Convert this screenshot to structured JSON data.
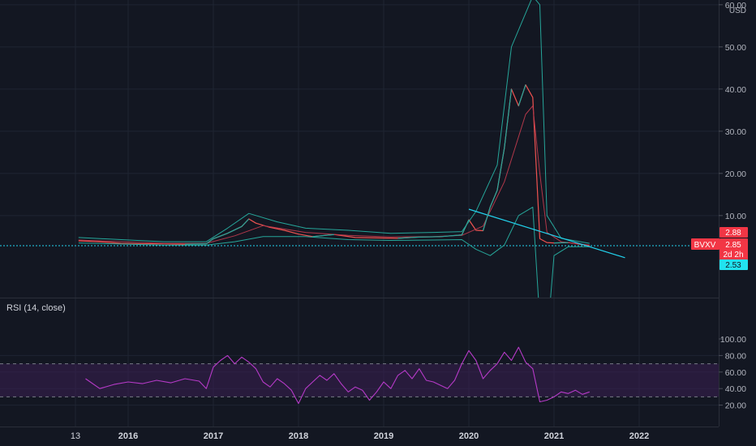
{
  "price_pane": {
    "currency": "USD",
    "y_ticks": [
      {
        "value": 60,
        "label": "60.00"
      },
      {
        "value": 50,
        "label": "50.00"
      },
      {
        "value": 40,
        "label": "40.00"
      },
      {
        "value": 30,
        "label": "30.00"
      },
      {
        "value": 20,
        "label": "20.00"
      },
      {
        "value": 10,
        "label": "10.00"
      }
    ],
    "ticker_badge": {
      "symbol": "BVXV",
      "price": "2.85",
      "countdown": "2d 2h",
      "color": "#f23645"
    },
    "high_badge": {
      "label": "2.88",
      "color": "#f23645"
    },
    "low_badge": {
      "label": "2.53",
      "color": "#22e3f0"
    }
  },
  "rsi_pane": {
    "title": "RSI (14, close)",
    "y_ticks": [
      {
        "value": 100,
        "label": "100.00"
      },
      {
        "value": 80,
        "label": "80.00"
      },
      {
        "value": 60,
        "label": "60.00"
      },
      {
        "value": 40,
        "label": "40.00"
      },
      {
        "value": 20,
        "label": "20.00"
      }
    ]
  },
  "x_axis": {
    "ticks": [
      "13",
      "2016",
      "2017",
      "2018",
      "2019",
      "2020",
      "2021",
      "2022"
    ]
  },
  "colors": {
    "background": "#131722",
    "grid": "#1f2433",
    "bull": "#26a69a",
    "bear": "#ef5350",
    "band": "#26a69a",
    "basis": "#b2384a",
    "trendline": "#22d3ee",
    "rsi_line": "#b63ac8",
    "rsi_band": "#3a1f52",
    "axis_text": "#b2b5be"
  },
  "chart_data": [
    {
      "type": "line",
      "pane": "price",
      "y_unit": "USD",
      "ylim": [
        0,
        60
      ],
      "x_range": [
        "2015-06",
        "2022-08"
      ],
      "grid": true,
      "series": [
        {
          "role": "price",
          "points": [
            [
              "2015-06",
              4.0
            ],
            [
              "2015-09",
              3.8
            ],
            [
              "2015-12",
              3.4
            ],
            [
              "2016-03",
              3.3
            ],
            [
              "2016-06",
              3.3
            ],
            [
              "2016-09",
              3.2
            ],
            [
              "2016-12",
              3.3
            ],
            [
              "2017-01",
              4.5
            ],
            [
              "2017-03",
              5.8
            ],
            [
              "2017-05",
              7.4
            ],
            [
              "2017-06",
              9.2
            ],
            [
              "2017-07",
              8.2
            ],
            [
              "2017-09",
              7.2
            ],
            [
              "2017-11",
              6.5
            ],
            [
              "2018-01",
              5.6
            ],
            [
              "2018-03",
              5.0
            ],
            [
              "2018-06",
              5.5
            ],
            [
              "2018-09",
              4.8
            ],
            [
              "2018-12",
              4.7
            ],
            [
              "2019-03",
              4.6
            ],
            [
              "2019-06",
              4.9
            ],
            [
              "2019-09",
              5.0
            ],
            [
              "2019-12",
              5.4
            ],
            [
              "2020-01",
              9.0
            ],
            [
              "2020-02",
              6.5
            ],
            [
              "2020-03",
              6.4
            ],
            [
              "2020-04",
              12.0
            ],
            [
              "2020-05",
              16.0
            ],
            [
              "2020-06",
              26.0
            ],
            [
              "2020-07",
              40.0
            ],
            [
              "2020-08",
              36.0
            ],
            [
              "2020-09",
              41.0
            ],
            [
              "2020-10",
              38.0
            ],
            [
              "2020-11",
              4.5
            ],
            [
              "2020-12",
              3.6
            ],
            [
              "2021-01",
              3.5
            ],
            [
              "2021-03",
              3.6
            ],
            [
              "2021-05",
              3.1
            ],
            [
              "2021-06",
              2.85
            ]
          ]
        },
        {
          "role": "upper_band",
          "points": [
            [
              "2015-06",
              4.8
            ],
            [
              "2016-06",
              3.8
            ],
            [
              "2016-12",
              3.8
            ],
            [
              "2017-03",
              7.0
            ],
            [
              "2017-06",
              10.5
            ],
            [
              "2017-10",
              8.5
            ],
            [
              "2018-02",
              7.0
            ],
            [
              "2018-08",
              6.5
            ],
            [
              "2019-02",
              5.8
            ],
            [
              "2019-08",
              6.0
            ],
            [
              "2019-12",
              6.2
            ],
            [
              "2020-02",
              11.0
            ],
            [
              "2020-05",
              22.0
            ],
            [
              "2020-07",
              50.0
            ],
            [
              "2020-10",
              62.0
            ],
            [
              "2020-11",
              60.0
            ],
            [
              "2020-12",
              10.0
            ],
            [
              "2021-02",
              4.6
            ],
            [
              "2021-06",
              3.4
            ]
          ]
        },
        {
          "role": "basis",
          "points": [
            [
              "2015-06",
              4.2
            ],
            [
              "2016-06",
              3.4
            ],
            [
              "2016-12",
              3.4
            ],
            [
              "2017-04",
              5.2
            ],
            [
              "2017-08",
              7.6
            ],
            [
              "2018-02",
              6.0
            ],
            [
              "2018-08",
              5.3
            ],
            [
              "2019-02",
              4.9
            ],
            [
              "2019-08",
              5.0
            ],
            [
              "2019-12",
              5.3
            ],
            [
              "2020-03",
              7.5
            ],
            [
              "2020-06",
              18.0
            ],
            [
              "2020-09",
              34.0
            ],
            [
              "2020-10",
              36.0
            ],
            [
              "2020-11",
              20.0
            ],
            [
              "2020-12",
              6.0
            ],
            [
              "2021-02",
              3.8
            ],
            [
              "2021-06",
              3.0
            ]
          ]
        },
        {
          "role": "lower_band",
          "points": [
            [
              "2015-06",
              3.5
            ],
            [
              "2016-06",
              3.0
            ],
            [
              "2016-12",
              3.0
            ],
            [
              "2017-04",
              3.8
            ],
            [
              "2017-08",
              5.0
            ],
            [
              "2018-02",
              5.0
            ],
            [
              "2018-08",
              4.3
            ],
            [
              "2019-02",
              4.1
            ],
            [
              "2019-08",
              4.2
            ],
            [
              "2019-12",
              4.3
            ],
            [
              "2020-02",
              2.0
            ],
            [
              "2020-04",
              0.5
            ],
            [
              "2020-06",
              3.0
            ],
            [
              "2020-08",
              10.0
            ],
            [
              "2020-10",
              12.0
            ],
            [
              "2020-11",
              -15.0
            ],
            [
              "2020-12",
              -20.0
            ],
            [
              "2021-01",
              0.5
            ],
            [
              "2021-03",
              2.6
            ],
            [
              "2021-06",
              2.6
            ]
          ]
        },
        {
          "role": "trendline",
          "points": [
            [
              "2020-01",
              11.5
            ],
            [
              "2021-11",
              0.0
            ]
          ]
        }
      ],
      "current_price_line": 2.85
    },
    {
      "type": "line",
      "pane": "rsi",
      "title": "RSI (14, close)",
      "ylim": [
        10,
        100
      ],
      "band": [
        30,
        70
      ],
      "x_range": [
        "2015-06",
        "2022-08"
      ],
      "grid": true,
      "series": [
        {
          "role": "rsi",
          "points": [
            [
              "2015-07",
              52
            ],
            [
              "2015-09",
              40
            ],
            [
              "2015-11",
              45
            ],
            [
              "2016-01",
              48
            ],
            [
              "2016-03",
              46
            ],
            [
              "2016-05",
              50
            ],
            [
              "2016-07",
              47
            ],
            [
              "2016-09",
              52
            ],
            [
              "2016-11",
              49
            ],
            [
              "2016-12",
              40
            ],
            [
              "2017-01",
              66
            ],
            [
              "2017-02",
              74
            ],
            [
              "2017-03",
              80
            ],
            [
              "2017-04",
              70
            ],
            [
              "2017-05",
              78
            ],
            [
              "2017-06",
              72
            ],
            [
              "2017-07",
              64
            ],
            [
              "2017-08",
              48
            ],
            [
              "2017-09",
              42
            ],
            [
              "2017-10",
              52
            ],
            [
              "2017-11",
              46
            ],
            [
              "2017-12",
              38
            ],
            [
              "2018-01",
              22
            ],
            [
              "2018-02",
              40
            ],
            [
              "2018-03",
              48
            ],
            [
              "2018-04",
              56
            ],
            [
              "2018-05",
              50
            ],
            [
              "2018-06",
              58
            ],
            [
              "2018-07",
              46
            ],
            [
              "2018-08",
              36
            ],
            [
              "2018-09",
              42
            ],
            [
              "2018-10",
              38
            ],
            [
              "2018-11",
              26
            ],
            [
              "2018-12",
              36
            ],
            [
              "2019-01",
              48
            ],
            [
              "2019-02",
              40
            ],
            [
              "2019-03",
              56
            ],
            [
              "2019-04",
              62
            ],
            [
              "2019-05",
              52
            ],
            [
              "2019-06",
              64
            ],
            [
              "2019-07",
              50
            ],
            [
              "2019-08",
              48
            ],
            [
              "2019-09",
              44
            ],
            [
              "2019-10",
              40
            ],
            [
              "2019-11",
              50
            ],
            [
              "2019-12",
              70
            ],
            [
              "2020-01",
              86
            ],
            [
              "2020-02",
              74
            ],
            [
              "2020-03",
              52
            ],
            [
              "2020-04",
              62
            ],
            [
              "2020-05",
              70
            ],
            [
              "2020-06",
              84
            ],
            [
              "2020-07",
              74
            ],
            [
              "2020-08",
              90
            ],
            [
              "2020-09",
              72
            ],
            [
              "2020-10",
              64
            ],
            [
              "2020-11",
              24
            ],
            [
              "2020-12",
              26
            ],
            [
              "2021-01",
              30
            ],
            [
              "2021-02",
              36
            ],
            [
              "2021-03",
              34
            ],
            [
              "2021-04",
              38
            ],
            [
              "2021-05",
              33
            ],
            [
              "2021-06",
              36
            ]
          ]
        }
      ]
    }
  ]
}
